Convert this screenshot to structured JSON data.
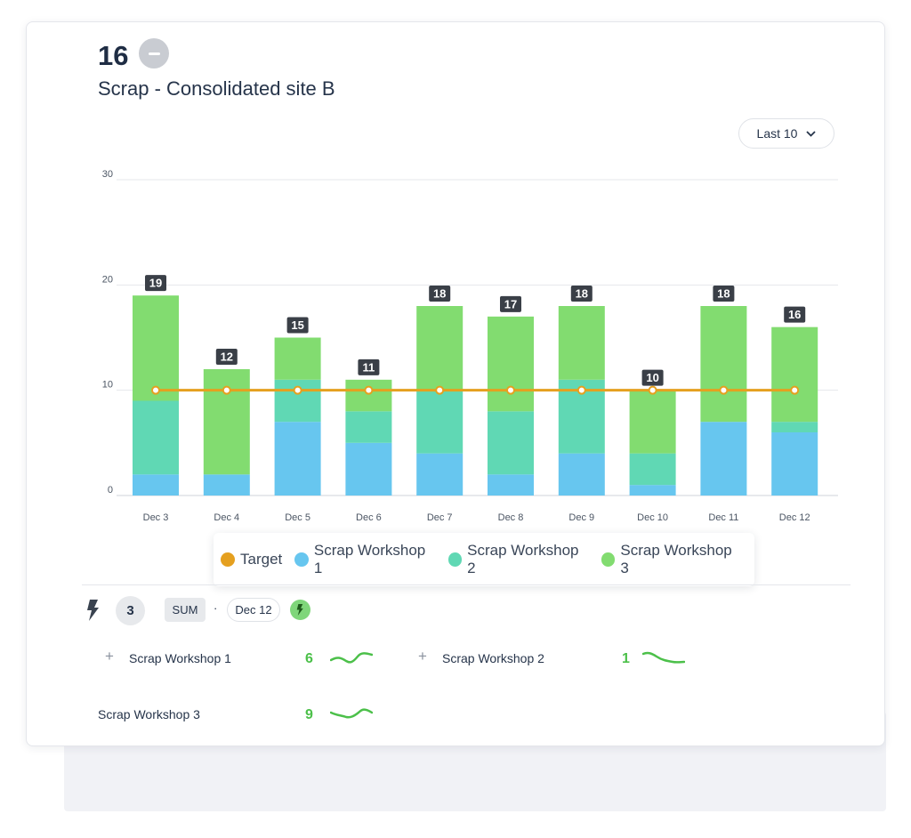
{
  "header": {
    "value": "16",
    "title": "Scrap - Consolidated site B",
    "status_icon": "minus-icon"
  },
  "range_select": {
    "label": "Last 10",
    "icon": "chevron-down-icon"
  },
  "colors": {
    "target": "#e5a01f",
    "workshop1": "#67c6ef",
    "workshop2": "#60d8b4",
    "workshop3": "#82dc70",
    "positive": "#4cc04a"
  },
  "chart_data": {
    "type": "bar",
    "stacked": true,
    "categories": [
      "Dec 3",
      "Dec 4",
      "Dec 5",
      "Dec 6",
      "Dec 7",
      "Dec 8",
      "Dec 9",
      "Dec 10",
      "Dec 11",
      "Dec 12"
    ],
    "series": [
      {
        "name": "Scrap Workshop 1",
        "values": [
          2,
          2,
          7,
          5,
          4,
          2,
          4,
          1,
          7,
          6
        ]
      },
      {
        "name": "Scrap Workshop 2",
        "values": [
          7,
          0,
          4,
          3,
          6,
          6,
          7,
          3,
          0,
          1
        ]
      },
      {
        "name": "Scrap Workshop 3",
        "values": [
          10,
          10,
          4,
          3,
          8,
          9,
          7,
          6,
          11,
          9
        ]
      }
    ],
    "totals": [
      19,
      12,
      15,
      11,
      18,
      17,
      18,
      10,
      18,
      16
    ],
    "target": {
      "name": "Target",
      "values": [
        10,
        10,
        10,
        10,
        10,
        10,
        10,
        10,
        10,
        10
      ]
    },
    "yticks": [
      0,
      10,
      20,
      30
    ],
    "ylim": [
      0,
      30
    ],
    "grid": true,
    "legend_position": "bottom"
  },
  "legend": [
    "Target",
    "Scrap Workshop 1",
    "Scrap Workshop 2",
    "Scrap Workshop 3"
  ],
  "summary": {
    "icon": "bolt-icon",
    "count": "3",
    "aggregation": "SUM",
    "separator": "·",
    "date": "Dec 12",
    "action_icon": "bolt-icon"
  },
  "metrics": [
    {
      "name": "Scrap Workshop 1",
      "value": "6",
      "expandable": true,
      "trend": "up"
    },
    {
      "name": "Scrap Workshop 2",
      "value": "1",
      "expandable": true,
      "trend": "down"
    },
    {
      "name": "Scrap Workshop 3",
      "value": "9",
      "expandable": false,
      "trend": "up"
    }
  ]
}
